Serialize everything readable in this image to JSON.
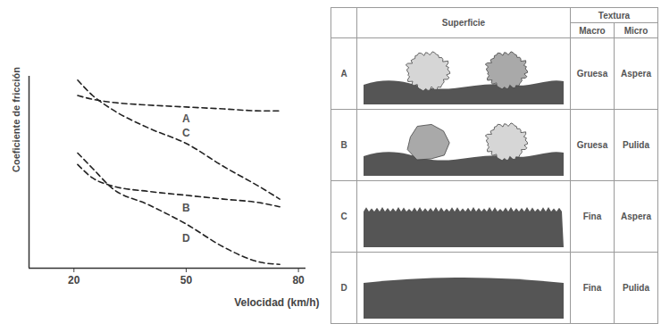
{
  "chart_data": {
    "type": "line",
    "x_label": "Velocidad (km/h)",
    "y_label": "Coeficiente de fricción",
    "x": [
      21,
      25,
      30,
      40,
      50,
      60,
      70,
      75
    ],
    "series": [
      {
        "name": "A",
        "values": [
          0.9,
          0.88,
          0.865,
          0.85,
          0.84,
          0.83,
          0.82,
          0.82
        ]
      },
      {
        "name": "C",
        "values": [
          0.98,
          0.9,
          0.83,
          0.73,
          0.65,
          0.53,
          0.42,
          0.36
        ]
      },
      {
        "name": "B",
        "values": [
          0.54,
          0.47,
          0.43,
          0.4,
          0.38,
          0.36,
          0.34,
          0.32
        ]
      },
      {
        "name": "D",
        "values": [
          0.6,
          0.52,
          0.42,
          0.33,
          0.23,
          0.11,
          0.03,
          0.02
        ]
      }
    ],
    "color": "#222222",
    "line_style": "dashed",
    "xlim": [
      8,
      82
    ],
    "xticks": [
      20,
      50,
      80
    ],
    "ylim": [
      0,
      1
    ],
    "tick_labels": "x",
    "grid": false
  },
  "table": {
    "header": {
      "surface": "Superficie",
      "texture": "Textura",
      "macro": "Macro",
      "micro": "Micro"
    },
    "rows": [
      [
        "A",
        "Gruesa",
        "Aspera"
      ],
      [
        "B",
        "Gruesa",
        "Pulida"
      ],
      [
        "C",
        "Fina",
        "Aspera"
      ],
      [
        "D",
        "Fina",
        "Pulida"
      ]
    ]
  }
}
